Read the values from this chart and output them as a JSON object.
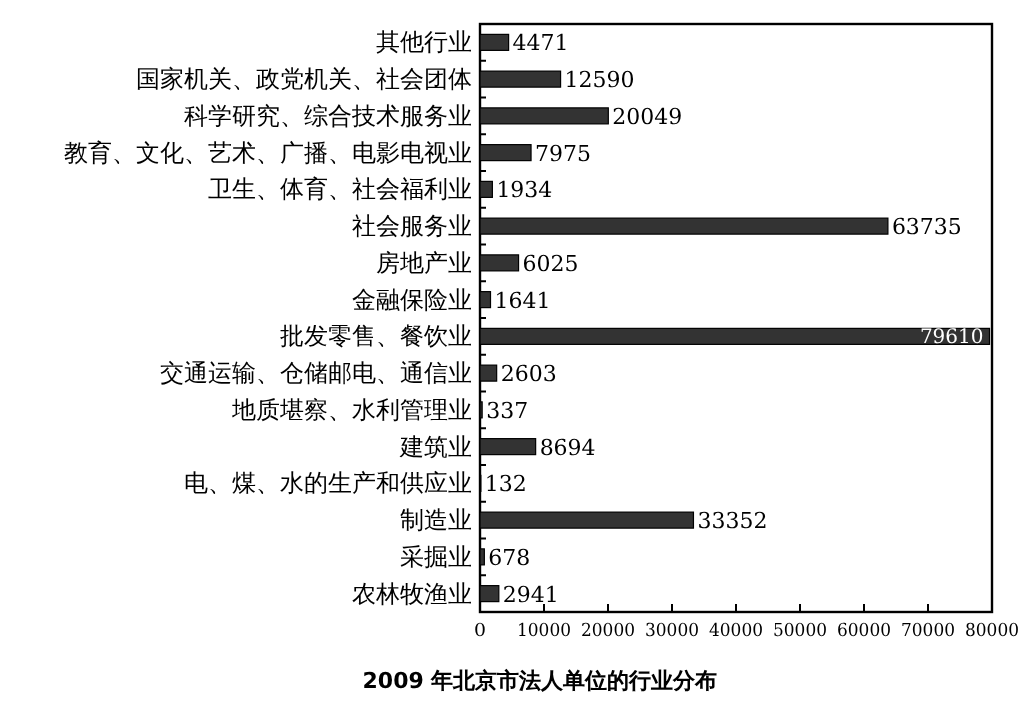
{
  "chart_data": {
    "type": "bar",
    "orientation": "horizontal",
    "title": "2009 年北京市法人单位的行业分布",
    "categories": [
      "其他行业",
      "国家机关、政党机关、社会团体",
      "科学研究、综合技术服务业",
      "教育、文化、艺术、广播、电影电视业",
      "卫生、体育、社会福利业",
      "社会服务业",
      "房地产业",
      "金融保险业",
      "批发零售、餐饮业",
      "交通运输、仓储邮电、通信业",
      "地质堪察、水利管理业",
      "建筑业",
      "电、煤、水的生产和供应业",
      "制造业",
      "采掘业",
      "农林牧渔业"
    ],
    "values": [
      4471,
      12590,
      20049,
      7975,
      1934,
      63735,
      6025,
      1641,
      79610,
      2603,
      337,
      8694,
      132,
      33352,
      678,
      2941
    ],
    "color": "#333333",
    "data_labels": true,
    "xlim": [
      0,
      80000
    ],
    "xticks": [
      0,
      10000,
      20000,
      30000,
      40000,
      50000,
      60000,
      70000,
      80000
    ],
    "grid": false
  }
}
